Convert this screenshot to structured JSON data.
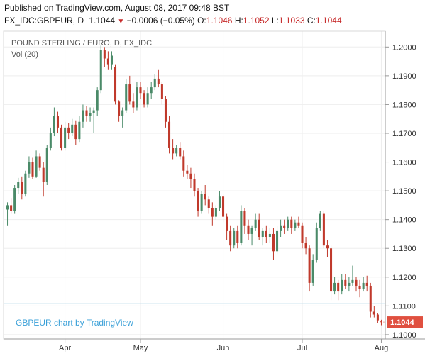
{
  "header": {
    "published": "Published on TradingView.com, August 08, 2017 09:48 BST",
    "symbol": "FX_IDC:GBPEUR, D",
    "last": "1.1044",
    "arrow": "▼",
    "change": "−0.0006 (−0.05%)",
    "o_label": "O:",
    "o_value": "1.1046",
    "h_label": "H:",
    "h_value": "1.1052",
    "l_label": "L:",
    "l_value": "1.1033",
    "c_label": "C:",
    "c_value": "1.1044"
  },
  "pane": {
    "title": "POUND STERLING / EURO, D, FX_IDC",
    "volume": "Vol (20)",
    "watermark": "GBPEUR chart by TradingView"
  },
  "colors": {
    "up": "#4a8a68",
    "down": "#c0392b",
    "last_label_bg": "#e05040",
    "grid": "#eeeeee",
    "axis": "#999999",
    "ref_line": "#bfdbea"
  },
  "chart_data": {
    "type": "candlestick",
    "title": "POUND STERLING / EURO, D, FX_IDC",
    "xlabel": "",
    "ylabel": "",
    "ylim": [
      1.0985,
      1.2055
    ],
    "y_ticks": [
      1.2,
      1.19,
      1.18,
      1.17,
      1.16,
      1.15,
      1.14,
      1.13,
      1.12,
      1.11,
      1.1
    ],
    "x_ticks": [
      {
        "label": "Apr",
        "index": 16
      },
      {
        "label": "May",
        "index": 37
      },
      {
        "label": "Jun",
        "index": 60
      },
      {
        "label": "Jul",
        "index": 82
      },
      {
        "label": "Aug",
        "index": 104
      }
    ],
    "reference_line": 1.1108,
    "last_value": "1.1044",
    "candles": [
      [
        1.1435,
        1.146,
        1.138,
        1.145
      ],
      [
        1.145,
        1.1475,
        1.142,
        1.143
      ],
      [
        1.143,
        1.152,
        1.142,
        1.151
      ],
      [
        1.151,
        1.1545,
        1.149,
        1.153
      ],
      [
        1.153,
        1.155,
        1.147,
        1.149
      ],
      [
        1.149,
        1.157,
        1.148,
        1.156
      ],
      [
        1.156,
        1.162,
        1.1545,
        1.16
      ],
      [
        1.16,
        1.1615,
        1.154,
        1.155
      ],
      [
        1.155,
        1.164,
        1.1545,
        1.162
      ],
      [
        1.162,
        1.163,
        1.157,
        1.158
      ],
      [
        1.158,
        1.16,
        1.148,
        1.153
      ],
      [
        1.153,
        1.166,
        1.152,
        1.165
      ],
      [
        1.165,
        1.172,
        1.164,
        1.17
      ],
      [
        1.17,
        1.179,
        1.169,
        1.176
      ],
      [
        1.176,
        1.1775,
        1.17,
        1.172
      ],
      [
        1.172,
        1.173,
        1.164,
        1.165
      ],
      [
        1.165,
        1.174,
        1.164,
        1.172
      ],
      [
        1.172,
        1.1735,
        1.168,
        1.17
      ],
      [
        1.17,
        1.175,
        1.169,
        1.173
      ],
      [
        1.173,
        1.1745,
        1.166,
        1.168
      ],
      [
        1.168,
        1.176,
        1.167,
        1.174
      ],
      [
        1.174,
        1.18,
        1.172,
        1.178
      ],
      [
        1.178,
        1.1795,
        1.174,
        1.176
      ],
      [
        1.176,
        1.179,
        1.174,
        1.177
      ],
      [
        1.177,
        1.179,
        1.17,
        1.178
      ],
      [
        1.178,
        1.186,
        1.176,
        1.185
      ],
      [
        1.185,
        1.2005,
        1.184,
        1.199
      ],
      [
        1.199,
        1.2,
        1.193,
        1.196
      ],
      [
        1.196,
        1.1985,
        1.192,
        1.194
      ],
      [
        1.194,
        1.1985,
        1.192,
        1.197
      ],
      [
        1.193,
        1.194,
        1.18,
        1.181
      ],
      [
        1.181,
        1.1815,
        1.174,
        1.176
      ],
      [
        1.176,
        1.179,
        1.172,
        1.178
      ],
      [
        1.178,
        1.189,
        1.177,
        1.187
      ],
      [
        1.187,
        1.19,
        1.18,
        1.181
      ],
      [
        1.181,
        1.184,
        1.177,
        1.179
      ],
      [
        1.179,
        1.188,
        1.178,
        1.186
      ],
      [
        1.186,
        1.188,
        1.182,
        1.184
      ],
      [
        1.184,
        1.185,
        1.179,
        1.18
      ],
      [
        1.18,
        1.186,
        1.179,
        1.184
      ],
      [
        1.184,
        1.188,
        1.182,
        1.186
      ],
      [
        1.186,
        1.1905,
        1.185,
        1.189
      ],
      [
        1.189,
        1.192,
        1.186,
        1.187
      ],
      [
        1.187,
        1.188,
        1.18,
        1.182
      ],
      [
        1.182,
        1.183,
        1.172,
        1.174
      ],
      [
        1.174,
        1.176,
        1.163,
        1.165
      ],
      [
        1.165,
        1.168,
        1.161,
        1.163
      ],
      [
        1.163,
        1.166,
        1.162,
        1.165
      ],
      [
        1.165,
        1.167,
        1.161,
        1.162
      ],
      [
        1.162,
        1.164,
        1.155,
        1.157
      ],
      [
        1.157,
        1.159,
        1.154,
        1.156
      ],
      [
        1.156,
        1.158,
        1.151,
        1.154
      ],
      [
        1.154,
        1.156,
        1.148,
        1.15
      ],
      [
        1.15,
        1.151,
        1.141,
        1.143
      ],
      [
        1.143,
        1.15,
        1.142,
        1.149
      ],
      [
        1.149,
        1.152,
        1.145,
        1.147
      ],
      [
        1.147,
        1.148,
        1.142,
        1.144
      ],
      [
        1.144,
        1.146,
        1.138,
        1.141
      ],
      [
        1.141,
        1.145,
        1.14,
        1.144
      ],
      [
        1.144,
        1.15,
        1.143,
        1.148
      ],
      [
        1.148,
        1.149,
        1.139,
        1.141
      ],
      [
        1.141,
        1.142,
        1.133,
        1.136
      ],
      [
        1.136,
        1.138,
        1.129,
        1.131
      ],
      [
        1.131,
        1.137,
        1.13,
        1.136
      ],
      [
        1.136,
        1.138,
        1.13,
        1.132
      ],
      [
        1.132,
        1.145,
        1.131,
        1.143
      ],
      [
        1.143,
        1.144,
        1.135,
        1.138
      ],
      [
        1.138,
        1.14,
        1.133,
        1.135
      ],
      [
        1.135,
        1.138,
        1.131,
        1.137
      ],
      [
        1.137,
        1.142,
        1.136,
        1.14
      ],
      [
        1.14,
        1.142,
        1.133,
        1.134
      ],
      [
        1.134,
        1.137,
        1.131,
        1.136
      ],
      [
        1.136,
        1.138,
        1.132,
        1.134
      ],
      [
        1.134,
        1.137,
        1.132,
        1.135
      ],
      [
        1.135,
        1.137,
        1.126,
        1.129
      ],
      [
        1.129,
        1.138,
        1.128,
        1.136
      ],
      [
        1.136,
        1.14,
        1.134,
        1.138
      ],
      [
        1.138,
        1.14,
        1.135,
        1.137
      ],
      [
        1.137,
        1.141,
        1.136,
        1.14
      ],
      [
        1.14,
        1.141,
        1.135,
        1.137
      ],
      [
        1.137,
        1.14,
        1.136,
        1.139
      ],
      [
        1.139,
        1.141,
        1.137,
        1.138
      ],
      [
        1.138,
        1.139,
        1.13,
        1.132
      ],
      [
        1.132,
        1.134,
        1.128,
        1.13
      ],
      [
        1.13,
        1.131,
        1.115,
        1.118
      ],
      [
        1.118,
        1.128,
        1.117,
        1.126
      ],
      [
        1.126,
        1.139,
        1.125,
        1.137
      ],
      [
        1.137,
        1.143,
        1.136,
        1.142
      ],
      [
        1.142,
        1.143,
        1.13,
        1.131
      ],
      [
        1.131,
        1.133,
        1.127,
        1.13
      ],
      [
        1.13,
        1.131,
        1.112,
        1.115
      ],
      [
        1.115,
        1.12,
        1.114,
        1.118
      ],
      [
        1.118,
        1.119,
        1.112,
        1.115
      ],
      [
        1.115,
        1.121,
        1.114,
        1.119
      ],
      [
        1.119,
        1.121,
        1.116,
        1.117
      ],
      [
        1.117,
        1.12,
        1.115,
        1.118
      ],
      [
        1.118,
        1.124,
        1.117,
        1.119
      ],
      [
        1.119,
        1.12,
        1.115,
        1.117
      ],
      [
        1.117,
        1.119,
        1.113,
        1.116
      ],
      [
        1.116,
        1.12,
        1.115,
        1.118
      ],
      [
        1.118,
        1.1205,
        1.115,
        1.117
      ],
      [
        1.117,
        1.118,
        1.106,
        1.108
      ],
      [
        1.108,
        1.11,
        1.106,
        1.107
      ],
      [
        1.107,
        1.1075,
        1.104,
        1.105
      ],
      [
        1.1046,
        1.1052,
        1.1033,
        1.1044
      ]
    ]
  }
}
